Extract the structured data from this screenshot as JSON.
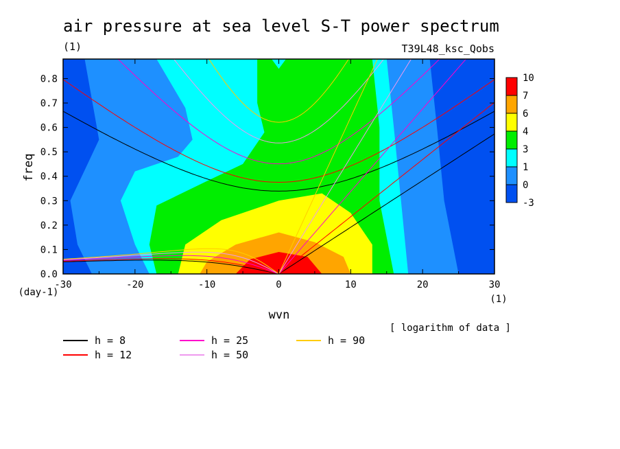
{
  "chart_data": {
    "type": "heatmap",
    "title": "air pressure at sea level S-T power spectrum",
    "title_unit": "(1)",
    "experiment": "T39L48_ksc_Qobs",
    "xlabel": "wvn",
    "x_unit": "(1)",
    "ylabel": "freq",
    "y_unit": "(day-1)",
    "xlim": [
      -30,
      30
    ],
    "ylim": [
      0,
      0.88
    ],
    "x_ticks": [
      "-30",
      "-20",
      "-10",
      "0",
      "10",
      "20",
      "30"
    ],
    "x_tick_values": [
      -30,
      -20,
      -10,
      0,
      10,
      20,
      30
    ],
    "y_ticks": [
      "0.0",
      "0.1",
      "0.2",
      "0.3",
      "0.4",
      "0.5",
      "0.6",
      "0.7",
      "0.8"
    ],
    "y_tick_values": [
      0,
      0.1,
      0.2,
      0.3,
      0.4,
      0.5,
      0.6,
      0.7,
      0.8
    ],
    "note": "[ logarithm of data ]",
    "colorbar": {
      "labels": [
        "10",
        "7",
        "6",
        "4",
        "3",
        "1",
        "0",
        "-3"
      ],
      "colors": [
        "#ff0000",
        "#ffa500",
        "#ffff00",
        "#00ee00",
        "#00ffff",
        "#1e90ff",
        "#0050f0"
      ]
    },
    "contour_levels": [
      {
        "color": "#ff0000",
        "points": [
          [
            -1,
            0
          ],
          [
            1,
            0.07
          ],
          [
            2,
            0.09
          ],
          [
            4,
            0.06
          ],
          [
            6,
            0
          ],
          [
            0,
            0.095
          ]
        ]
      },
      {
        "color": "#ffa500",
        "points": [
          [
            0,
            0.17
          ],
          [
            -6,
            0.12
          ],
          [
            -10,
            0.05
          ],
          [
            -11,
            0
          ],
          [
            10,
            0
          ],
          [
            8,
            0.07
          ],
          [
            5,
            0.12
          ]
        ]
      },
      {
        "color": "#ffff00",
        "points": [
          [
            0,
            0.3
          ],
          [
            -8,
            0.22
          ],
          [
            -13,
            0.12
          ],
          [
            -14,
            0
          ],
          [
            13,
            0
          ],
          [
            11,
            0.15
          ],
          [
            9,
            0.28
          ]
        ]
      }
    ],
    "dispersion_curves": [
      {
        "label": "h =  8",
        "h": 8,
        "color": "#000000"
      },
      {
        "label": "h = 12",
        "h": 12,
        "color": "#ff0000"
      },
      {
        "label": "h = 25",
        "h": 25,
        "color": "#ff00cc"
      },
      {
        "label": "h = 50",
        "h": 50,
        "color": "#ee99ee"
      },
      {
        "label": "h = 90",
        "h": 90,
        "color": "#ffcc00"
      }
    ]
  }
}
